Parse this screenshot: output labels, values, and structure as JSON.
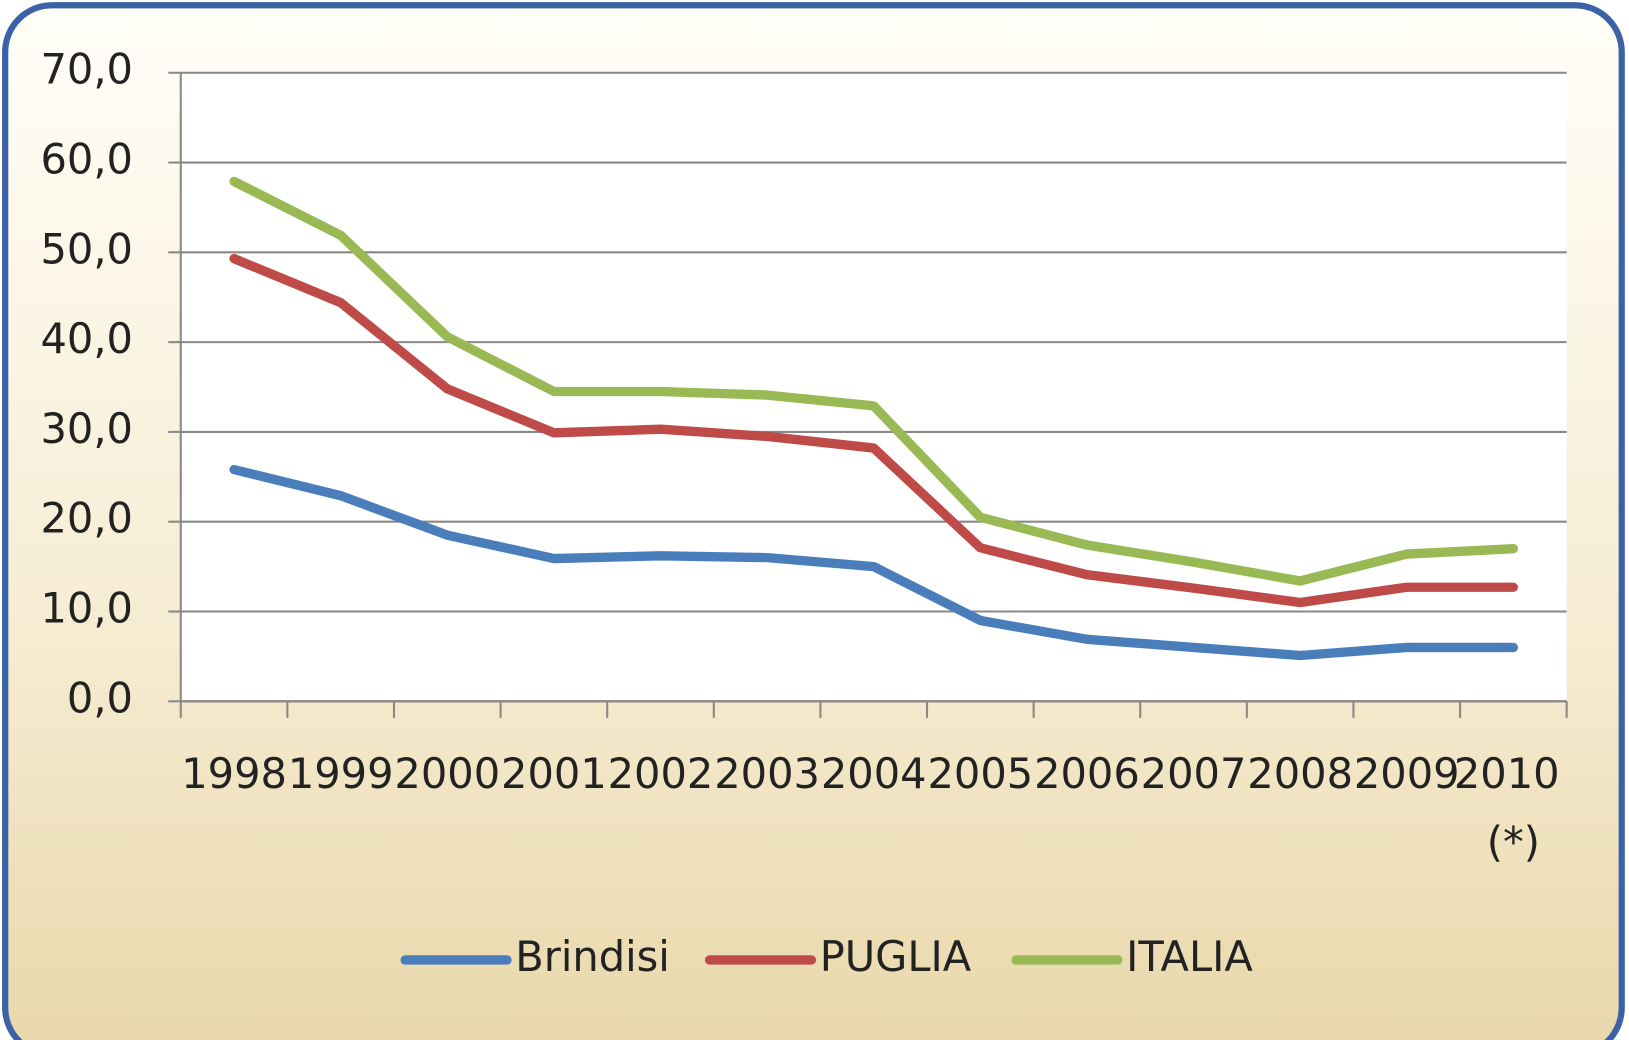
{
  "chart_data": {
    "type": "line",
    "categories": [
      "1998",
      "1999",
      "2000",
      "2001",
      "2002",
      "2003",
      "2004",
      "2005",
      "2006",
      "2007",
      "2008",
      "2009",
      "2010 (*)"
    ],
    "series": [
      {
        "name": "Brindisi",
        "color": "#4a7ebb",
        "values": [
          25.8,
          22.9,
          18.5,
          15.9,
          16.2,
          16.0,
          15.0,
          9.0,
          6.9,
          6.0,
          5.1,
          6.0,
          6.0
        ]
      },
      {
        "name": "PUGLIA",
        "color": "#be4b48",
        "values": [
          49.3,
          44.4,
          34.8,
          29.9,
          30.3,
          29.5,
          28.2,
          17.1,
          14.1,
          12.6,
          11.0,
          12.7,
          12.7
        ]
      },
      {
        "name": "ITALIA",
        "color": "#98b954",
        "values": [
          57.9,
          51.9,
          40.6,
          34.5,
          34.5,
          34.1,
          32.9,
          20.5,
          17.4,
          15.5,
          13.4,
          16.4,
          17.0
        ]
      }
    ],
    "ylim": [
      0,
      70
    ],
    "yticks": [
      {
        "value": 0,
        "label": "0,0"
      },
      {
        "value": 10,
        "label": "10,0"
      },
      {
        "value": 20,
        "label": "20,0"
      },
      {
        "value": 30,
        "label": "30,0"
      },
      {
        "value": 40,
        "label": "40,0"
      },
      {
        "value": 50,
        "label": "50,0"
      },
      {
        "value": 60,
        "label": "60,0"
      },
      {
        "value": 70,
        "label": "70,0"
      }
    ],
    "grid": true,
    "legend": "bottom"
  }
}
